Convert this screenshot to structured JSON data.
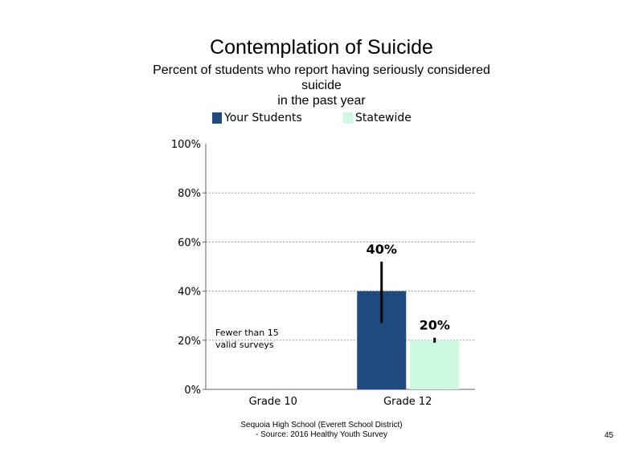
{
  "chart_data": {
    "type": "bar",
    "title": "Contemplation of Suicide",
    "subtitle_lines": [
      "Percent of students who report having seriously considered",
      "suicide",
      "in the past year"
    ],
    "categories": [
      "Grade 10",
      "Grade 12"
    ],
    "series": [
      {
        "name": "Your Students",
        "color": "#1f4a7e",
        "values": [
          null,
          40
        ],
        "error": [
          null,
          [
            27,
            52
          ]
        ]
      },
      {
        "name": "Statewide",
        "color": "#ccf9df",
        "values": [
          null,
          20
        ],
        "error": [
          null,
          [
            19,
            21
          ]
        ]
      }
    ],
    "data_labels": [
      "40%",
      "20%"
    ],
    "ylim": [
      0,
      100
    ],
    "yticks": [
      "0%",
      "20%",
      "40%",
      "60%",
      "80%",
      "100%"
    ],
    "ytick_values": [
      0,
      20,
      40,
      60,
      80,
      100
    ],
    "grid": true,
    "legend_position": "top",
    "annotation": "Fewer than 15 valid surveys"
  },
  "footer": {
    "line1": "Sequoia High School (Everett School District)",
    "line2": "- Source: 2016 Healthy Youth Survey"
  },
  "page_number": "45"
}
